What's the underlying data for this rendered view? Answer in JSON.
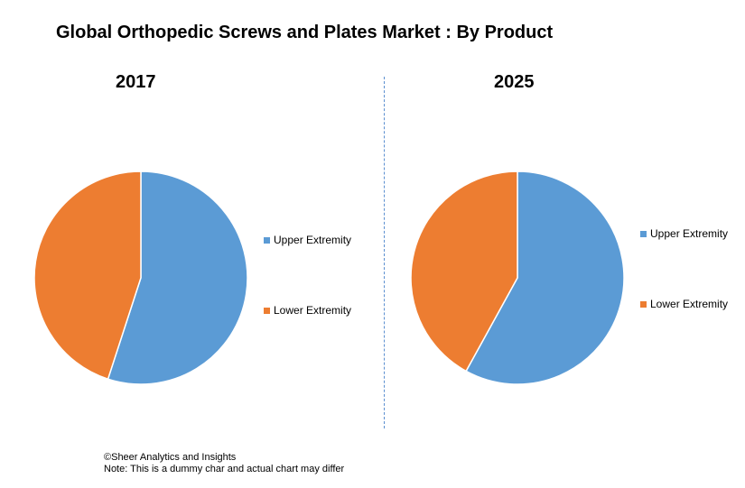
{
  "title": "Global Orthopedic Screws and Plates Market : By Product",
  "chart_data": [
    {
      "type": "pie",
      "title": "2017",
      "labels": [
        "Upper Extremity",
        "Lower Extremity"
      ],
      "values": [
        55,
        45
      ],
      "colors": [
        "#5b9bd5",
        "#ed7d31"
      ],
      "legend": "right"
    },
    {
      "type": "pie",
      "title": "2025",
      "labels": [
        "Upper Extremity",
        "Lower Extremity"
      ],
      "values": [
        58,
        42
      ],
      "colors": [
        "#5b9bd5",
        "#ed7d31"
      ],
      "legend": "right"
    }
  ],
  "footer": {
    "copyright": "©Sheer Analytics and Insights",
    "note": "Note: This is a dummy char and actual chart may differ"
  }
}
